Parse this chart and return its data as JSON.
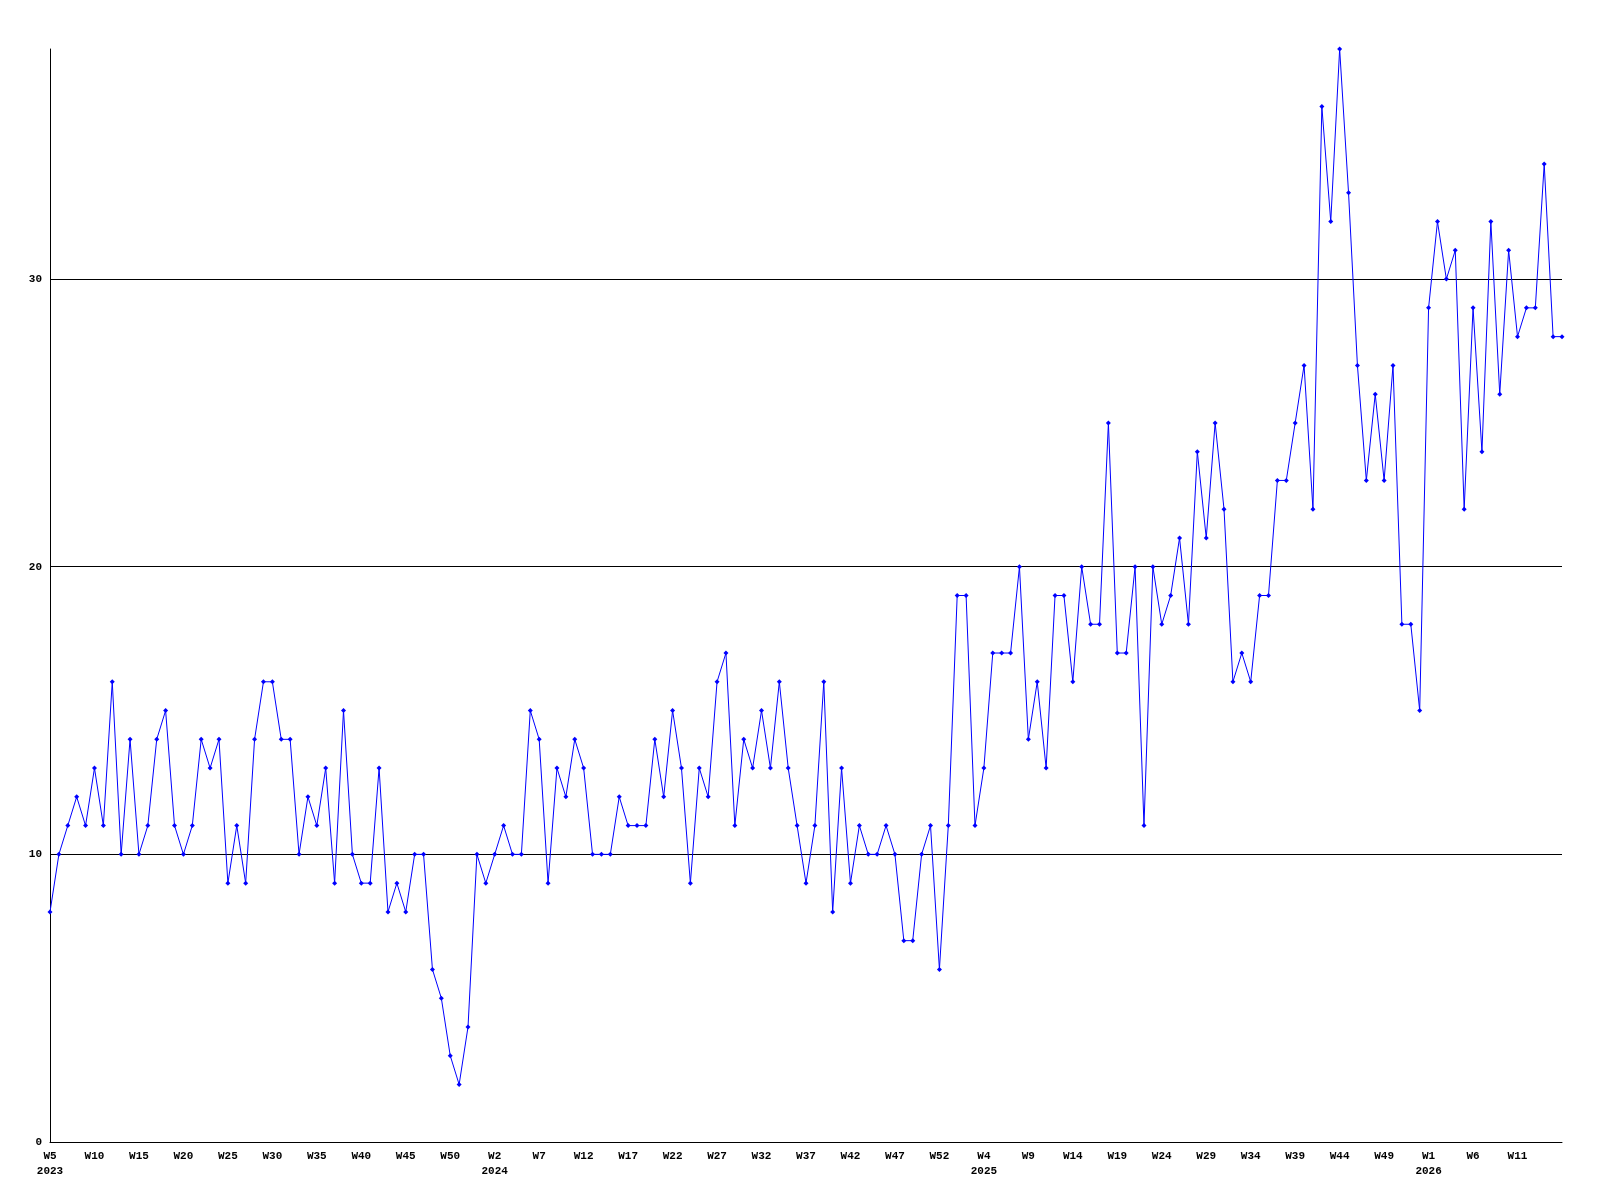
{
  "chart_data": {
    "type": "line",
    "categories": [
      "W5\n2023",
      null,
      null,
      null,
      null,
      "W10",
      null,
      null,
      null,
      null,
      "W15",
      null,
      null,
      null,
      null,
      "W20",
      null,
      null,
      null,
      null,
      "W25",
      null,
      null,
      null,
      null,
      "W30",
      null,
      null,
      null,
      null,
      "W35",
      null,
      null,
      null,
      null,
      "W40",
      null,
      null,
      null,
      null,
      "W45",
      null,
      null,
      null,
      null,
      "W50",
      null,
      null,
      null,
      null,
      "W2\n2024",
      null,
      null,
      null,
      null,
      "W7",
      null,
      null,
      null,
      null,
      "W12",
      null,
      null,
      null,
      null,
      "W17",
      null,
      null,
      null,
      null,
      "W22",
      null,
      null,
      null,
      null,
      "W27",
      null,
      null,
      null,
      null,
      "W32",
      null,
      null,
      null,
      null,
      "W37",
      null,
      null,
      null,
      null,
      "W42",
      null,
      null,
      null,
      null,
      "W47",
      null,
      null,
      null,
      null,
      "W52",
      null,
      null,
      null,
      null,
      "W4\n2025",
      null,
      null,
      null,
      null,
      "W9",
      null,
      null,
      null,
      null,
      "W14",
      null,
      null,
      null,
      null,
      "W19",
      null,
      null,
      null,
      null,
      "W24",
      null,
      null,
      null,
      null,
      "W29",
      null,
      null,
      null,
      null,
      "W34",
      null,
      null,
      null,
      null,
      "W39",
      null,
      null,
      null,
      null,
      "W44",
      null,
      null,
      null,
      null,
      "W49",
      null,
      null,
      null,
      null,
      "W1\n2026",
      null,
      null,
      null,
      null,
      "W6",
      null,
      null,
      null,
      null,
      "W11",
      null,
      null,
      null,
      null,
      null
    ],
    "values": [
      8,
      10,
      11,
      12,
      11,
      13,
      11,
      16,
      10,
      14,
      10,
      11,
      14,
      15,
      11,
      10,
      11,
      14,
      13,
      14,
      9,
      11,
      9,
      14,
      16,
      16,
      14,
      14,
      10,
      12,
      11,
      13,
      9,
      15,
      10,
      9,
      9,
      13,
      8,
      9,
      8,
      10,
      10,
      6,
      5,
      3,
      2,
      4,
      10,
      9,
      10,
      11,
      10,
      10,
      15,
      14,
      9,
      13,
      12,
      14,
      13,
      10,
      10,
      10,
      12,
      11,
      11,
      11,
      14,
      12,
      15,
      13,
      9,
      13,
      12,
      16,
      17,
      11,
      14,
      13,
      15,
      13,
      16,
      13,
      11,
      9,
      11,
      16,
      8,
      13,
      9,
      11,
      10,
      10,
      11,
      10,
      7,
      7,
      10,
      11,
      6,
      11,
      19,
      19,
      11,
      13,
      17,
      17,
      17,
      20,
      14,
      16,
      13,
      19,
      19,
      16,
      20,
      18,
      18,
      25,
      17,
      17,
      20,
      11,
      20,
      18,
      19,
      21,
      18,
      24,
      21,
      25,
      22,
      16,
      17,
      16,
      19,
      19,
      23,
      23,
      25,
      27,
      22,
      36,
      32,
      38,
      33,
      27,
      23,
      26,
      23,
      27,
      18,
      18,
      15,
      29,
      32,
      30,
      31,
      22,
      29,
      24,
      32,
      26,
      31,
      28,
      29,
      29,
      34,
      28,
      28
    ],
    "color": "#0000ff",
    "ylim": [
      0,
      38
    ],
    "yticks": [
      0,
      10,
      20,
      30
    ],
    "grid": "y",
    "marker": "diamond"
  }
}
